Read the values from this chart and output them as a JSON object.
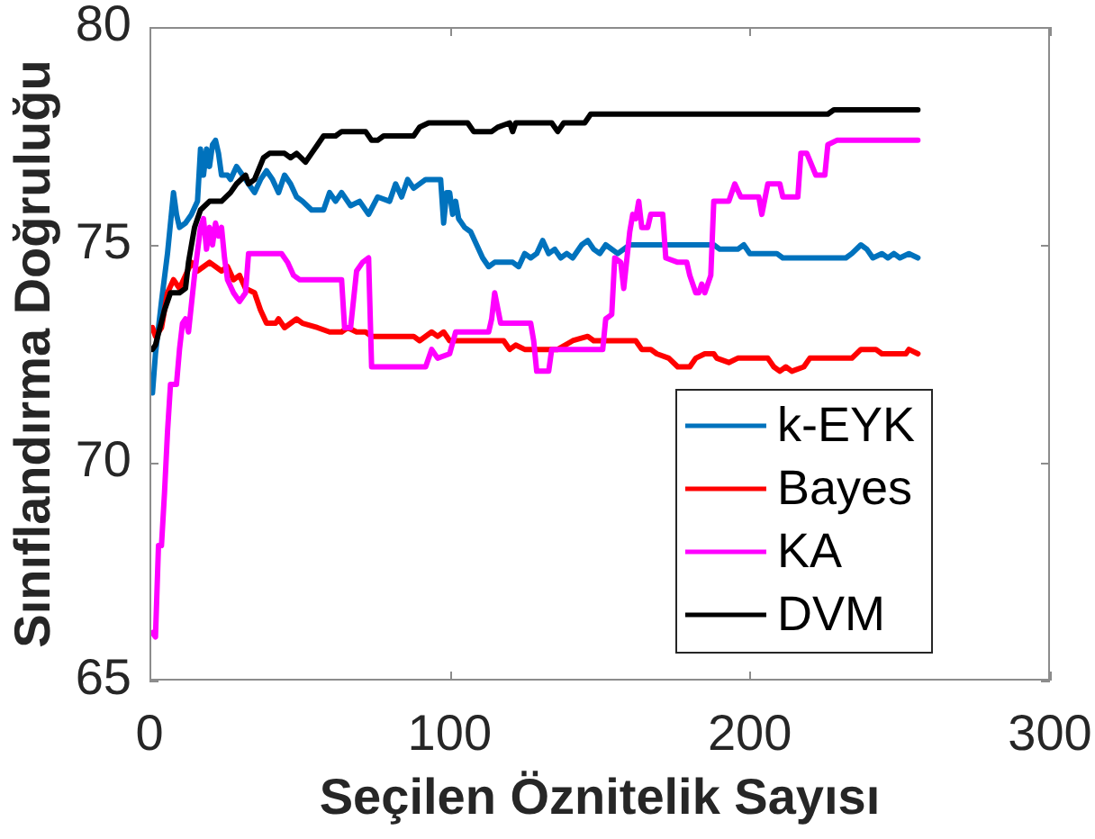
{
  "chart_data": {
    "type": "line",
    "xlabel": "Seçilen Öznitelik Sayısı",
    "ylabel": "Sınıflandırma Doğruluğu",
    "xlim": [
      0,
      300
    ],
    "xticks": [
      0,
      100,
      200,
      300
    ],
    "ylim": [
      65,
      80
    ],
    "yticks": [
      65,
      70,
      75,
      80
    ],
    "legend": "bottom right",
    "marker": "none",
    "line_style": "solid",
    "series": [
      {
        "name": "k-EYK",
        "color": "#0072bd",
        "x": [
          1,
          2,
          4,
          6,
          8,
          9,
          10,
          12,
          14,
          16,
          17,
          18,
          19,
          20,
          21,
          22,
          23,
          24,
          26,
          27,
          29,
          31,
          33,
          35,
          37,
          39,
          41,
          43,
          45,
          47,
          49,
          51,
          54,
          58,
          60,
          62,
          64,
          67,
          70,
          73,
          76,
          80,
          82,
          84,
          86,
          88,
          92,
          97,
          98,
          99,
          100,
          101,
          102,
          103,
          105,
          107,
          109,
          111,
          113,
          115,
          121,
          123,
          125,
          127,
          129,
          131,
          133,
          135,
          137,
          139,
          141,
          144,
          146,
          148,
          150,
          152,
          156,
          160,
          188,
          190,
          196,
          198,
          200,
          209,
          211,
          232,
          234,
          237,
          239,
          241,
          244,
          246,
          248,
          250,
          253,
          256
        ],
        "values": [
          71.6,
          72.5,
          73.7,
          74.8,
          76.2,
          75.7,
          75.4,
          75.5,
          75.7,
          76.0,
          77.2,
          76.6,
          77.2,
          76.8,
          77.3,
          77.4,
          77.1,
          76.6,
          76.6,
          76.5,
          76.8,
          76.6,
          76.4,
          76.2,
          76.5,
          76.7,
          76.5,
          76.2,
          76.6,
          76.4,
          76.1,
          76.0,
          75.8,
          75.8,
          76.2,
          76.0,
          76.2,
          75.9,
          76.0,
          75.7,
          76.1,
          76.0,
          76.4,
          76.1,
          76.5,
          76.3,
          76.5,
          76.5,
          75.5,
          76.2,
          76.2,
          75.7,
          76.0,
          75.6,
          75.4,
          75.3,
          75.0,
          74.7,
          74.5,
          74.6,
          74.6,
          74.5,
          74.8,
          74.7,
          74.8,
          75.1,
          74.8,
          74.9,
          74.7,
          74.8,
          74.7,
          75.0,
          75.1,
          74.9,
          74.8,
          75.0,
          74.8,
          75.0,
          75.0,
          74.9,
          74.9,
          75.0,
          74.8,
          74.8,
          74.7,
          74.7,
          74.8,
          75.0,
          74.9,
          74.7,
          74.8,
          74.7,
          74.8,
          74.7,
          74.8,
          74.7
        ]
      },
      {
        "name": "Bayes",
        "color": "#ff0000",
        "x": [
          1,
          2,
          4,
          6,
          8,
          10,
          12,
          14,
          16,
          18,
          20,
          24,
          26,
          28,
          30,
          32,
          35,
          37,
          39,
          42,
          43,
          45,
          49,
          51,
          56,
          60,
          64,
          66,
          69,
          72,
          74,
          88,
          90,
          94,
          96,
          98,
          100,
          118,
          120,
          122,
          125,
          128,
          131,
          134,
          136,
          141,
          146,
          148,
          162,
          164,
          167,
          169,
          173,
          176,
          180,
          182,
          185,
          188,
          189,
          193,
          196,
          206,
          208,
          210,
          212,
          214,
          218,
          220,
          222,
          234,
          237,
          242,
          244,
          252,
          253,
          256
        ],
        "values": [
          73.1,
          72.9,
          73.1,
          73.9,
          74.2,
          74.0,
          74.3,
          74.6,
          74.4,
          74.5,
          74.6,
          74.4,
          74.5,
          74.2,
          74.3,
          74.0,
          73.9,
          73.5,
          73.2,
          73.2,
          73.3,
          73.1,
          73.3,
          73.2,
          73.1,
          73.0,
          73.0,
          73.1,
          73.0,
          73.0,
          72.9,
          72.9,
          72.8,
          73.0,
          72.9,
          73.0,
          72.8,
          72.8,
          72.6,
          72.7,
          72.6,
          72.6,
          72.6,
          72.6,
          72.6,
          72.8,
          72.9,
          72.8,
          72.8,
          72.6,
          72.6,
          72.5,
          72.4,
          72.2,
          72.2,
          72.4,
          72.5,
          72.5,
          72.4,
          72.3,
          72.4,
          72.4,
          72.2,
          72.1,
          72.2,
          72.1,
          72.2,
          72.4,
          72.4,
          72.4,
          72.6,
          72.6,
          72.5,
          72.5,
          72.6,
          72.5
        ]
      },
      {
        "name": "KA",
        "color": "#ff00ff",
        "x": [
          1,
          2,
          3,
          4,
          5,
          6,
          7,
          9,
          10,
          11,
          12,
          13,
          15,
          17,
          18,
          19,
          20,
          21,
          22,
          23,
          24,
          25,
          26,
          28,
          30,
          32,
          33,
          44,
          46,
          48,
          50,
          64,
          65,
          67,
          69,
          71,
          73,
          74,
          92,
          94,
          96,
          100,
          102,
          113,
          114,
          115,
          117,
          127,
          128,
          129,
          133,
          134,
          151,
          152,
          154,
          155,
          157,
          158,
          160,
          161,
          162,
          163,
          164,
          166,
          167,
          171,
          172,
          176,
          179,
          180,
          182,
          183,
          184,
          185,
          187,
          188,
          193,
          195,
          197,
          203,
          204,
          206,
          210,
          211,
          216,
          217,
          219,
          222,
          225,
          226,
          229,
          256
        ],
        "values": [
          66.1,
          66.0,
          68.1,
          68.1,
          69.3,
          70.7,
          71.8,
          71.8,
          72.6,
          73.2,
          73.3,
          73.0,
          74.3,
          75.4,
          75.6,
          74.9,
          75.4,
          75.0,
          75.5,
          75.2,
          75.4,
          74.7,
          74.2,
          73.9,
          73.7,
          73.9,
          74.8,
          74.8,
          74.6,
          74.3,
          74.2,
          74.2,
          73.1,
          73.1,
          74.4,
          74.6,
          74.7,
          72.2,
          72.2,
          72.6,
          72.4,
          72.5,
          73.0,
          73.0,
          73.3,
          73.9,
          73.2,
          73.2,
          72.8,
          72.1,
          72.1,
          72.6,
          72.6,
          73.3,
          73.4,
          74.7,
          74.6,
          74.0,
          75.3,
          75.7,
          75.6,
          76.0,
          75.4,
          75.4,
          75.7,
          75.7,
          74.7,
          74.6,
          74.6,
          74.3,
          73.9,
          73.9,
          74.1,
          73.9,
          74.3,
          76.0,
          76.0,
          76.4,
          76.1,
          76.1,
          75.7,
          76.4,
          76.4,
          76.1,
          76.1,
          77.1,
          77.1,
          76.6,
          76.6,
          77.3,
          77.4,
          77.4
        ]
      },
      {
        "name": "DVM",
        "color": "#000000",
        "x": [
          1,
          2,
          5,
          7,
          10,
          12,
          13,
          15,
          17,
          20,
          24,
          27,
          29,
          32,
          33,
          35,
          38,
          40,
          45,
          47,
          49,
          52,
          54,
          56,
          58,
          62,
          64,
          72,
          74,
          76,
          78,
          88,
          90,
          93,
          106,
          108,
          114,
          116,
          120,
          121,
          122,
          134,
          136,
          138,
          145,
          147,
          226,
          228,
          256
        ],
        "values": [
          72.6,
          72.7,
          73.5,
          73.9,
          73.9,
          74.0,
          74.6,
          75.4,
          75.8,
          76.0,
          76.0,
          76.2,
          76.4,
          76.6,
          76.4,
          76.5,
          77.0,
          77.1,
          77.1,
          77.0,
          77.1,
          76.9,
          77.1,
          77.3,
          77.5,
          77.5,
          77.6,
          77.6,
          77.4,
          77.4,
          77.5,
          77.5,
          77.7,
          77.8,
          77.8,
          77.6,
          77.6,
          77.7,
          77.8,
          77.6,
          77.8,
          77.8,
          77.6,
          77.8,
          77.8,
          78.0,
          78.0,
          78.1,
          78.1
        ]
      }
    ]
  }
}
